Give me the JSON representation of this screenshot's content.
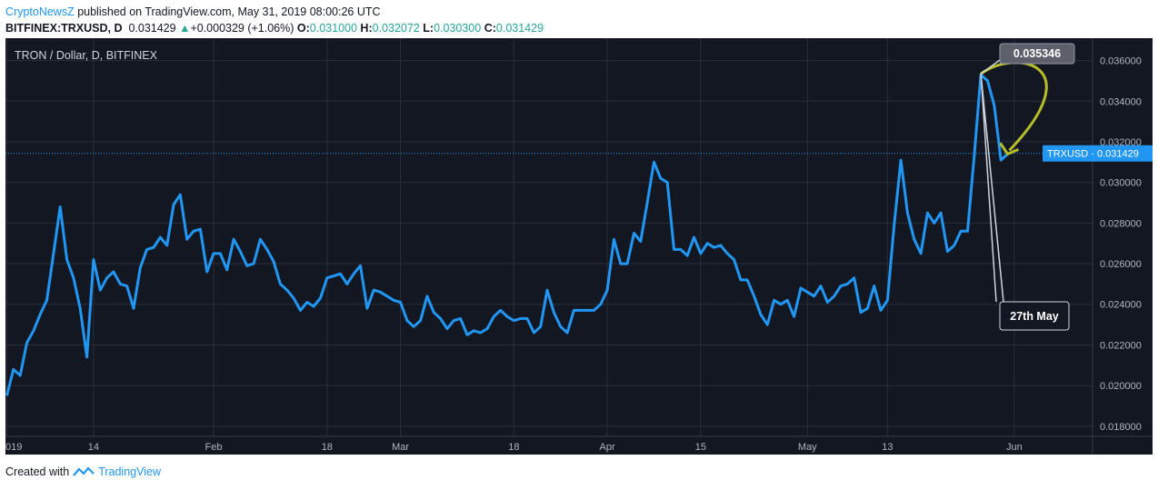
{
  "header": {
    "author": "CryptoNewsZ",
    "published": "published on TradingView.com, May 31, 2019 08:00:26 UTC",
    "symbol": "BITFINEX:TRXUSD, D",
    "last": "0.031429",
    "change": "+0.000329 (+1.06%)",
    "o_label": "O:",
    "o": "0.031000",
    "h_label": "H:",
    "h": "0.032072",
    "l_label": "L:",
    "l": "0.030300",
    "c_label": "C:",
    "c": "0.031429"
  },
  "footer": {
    "created_with": "Created with",
    "brand": "TradingView"
  },
  "colors": {
    "background": "#131722",
    "line": "#2196f3",
    "grid": "#2a2e39",
    "annotation": "#b5bd2a",
    "price_tag": "#2196f3"
  },
  "chart_data": {
    "type": "line",
    "title": "TRON / Dollar, D, BITFINEX",
    "ylim": [
      0.0175,
      0.0371
    ],
    "y_ticks": [
      "0.018000",
      "0.020000",
      "0.022000",
      "0.024000",
      "0.026000",
      "0.028000",
      "0.030000",
      "0.032000",
      "0.034000",
      "0.036000"
    ],
    "y_tick_values": [
      0.018,
      0.02,
      0.022,
      0.024,
      0.026,
      0.028,
      0.03,
      0.032,
      0.034,
      0.036
    ],
    "x_ticks": [
      {
        "label": "019",
        "date": "2019-01-01"
      },
      {
        "label": "14",
        "date": "2019-01-14"
      },
      {
        "label": "Feb",
        "date": "2019-02-01"
      },
      {
        "label": "18",
        "date": "2019-02-18"
      },
      {
        "label": "Mar",
        "date": "2019-03-01"
      },
      {
        "label": "18",
        "date": "2019-03-18"
      },
      {
        "label": "Apr",
        "date": "2019-04-01"
      },
      {
        "label": "15",
        "date": "2019-04-15"
      },
      {
        "label": "May",
        "date": "2019-05-01"
      },
      {
        "label": "13",
        "date": "2019-05-13"
      },
      {
        "label": "Jun",
        "date": "2019-06-01"
      }
    ],
    "x_start": "2019-01-01",
    "series": [
      {
        "name": "TRXUSD",
        "values": [
          0.0195,
          0.0208,
          0.0205,
          0.0221,
          0.0227,
          0.0235,
          0.0242,
          0.0265,
          0.0288,
          0.0262,
          0.0253,
          0.0238,
          0.0214,
          0.0262,
          0.0247,
          0.0253,
          0.0256,
          0.025,
          0.0249,
          0.0238,
          0.0258,
          0.0267,
          0.0268,
          0.0273,
          0.0269,
          0.0289,
          0.0294,
          0.0272,
          0.0276,
          0.0277,
          0.0256,
          0.0265,
          0.0265,
          0.0257,
          0.0272,
          0.0266,
          0.0259,
          0.026,
          0.0272,
          0.0267,
          0.0261,
          0.025,
          0.0247,
          0.0243,
          0.0237,
          0.0241,
          0.0239,
          0.0243,
          0.0253,
          0.0254,
          0.0255,
          0.025,
          0.0255,
          0.0259,
          0.0238,
          0.0247,
          0.0246,
          0.0244,
          0.0242,
          0.0241,
          0.0232,
          0.0229,
          0.0232,
          0.0244,
          0.0236,
          0.0233,
          0.0228,
          0.0232,
          0.0233,
          0.0225,
          0.0227,
          0.0226,
          0.0228,
          0.0234,
          0.0237,
          0.0234,
          0.0232,
          0.0233,
          0.0233,
          0.0226,
          0.0229,
          0.0247,
          0.0236,
          0.0229,
          0.0226,
          0.0237,
          0.0237,
          0.0237,
          0.0237,
          0.024,
          0.0247,
          0.0272,
          0.026,
          0.026,
          0.0275,
          0.0271,
          0.029,
          0.031,
          0.0302,
          0.03,
          0.0267,
          0.0267,
          0.0264,
          0.0273,
          0.0265,
          0.027,
          0.0268,
          0.0269,
          0.0265,
          0.0262,
          0.0252,
          0.0252,
          0.0244,
          0.0235,
          0.023,
          0.0242,
          0.024,
          0.0242,
          0.0234,
          0.0248,
          0.0246,
          0.0244,
          0.0249,
          0.0241,
          0.0244,
          0.0249,
          0.025,
          0.0253,
          0.0236,
          0.0238,
          0.0249,
          0.0237,
          0.0242,
          0.0279,
          0.0311,
          0.0285,
          0.0272,
          0.0265,
          0.0285,
          0.028,
          0.0285,
          0.0266,
          0.0269,
          0.0276,
          0.0276,
          0.0313,
          0.0353,
          0.035,
          0.0338,
          0.0311,
          0.0314
        ]
      }
    ],
    "last_label": "TRXUSD",
    "last_value": "0.031429",
    "annotations": [
      {
        "text": "0.035346",
        "date": "2019-05-27",
        "value": 0.035346
      },
      {
        "text": "27th May",
        "date": "2019-05-27"
      }
    ]
  }
}
